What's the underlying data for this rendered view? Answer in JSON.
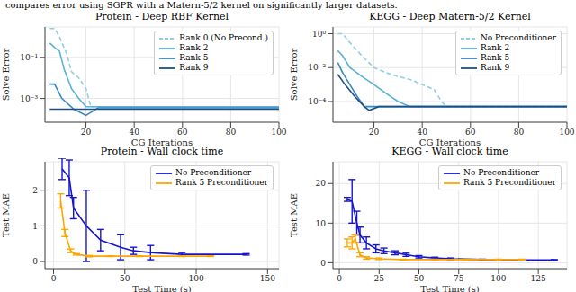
{
  "caption": "compares error using SGPR with a Matern-5/2 kernel on significantly larger datasets.",
  "chart_data": [
    {
      "type": "line",
      "title": "Protein - Deep RBF Kernel",
      "x_label": "CG Iterations",
      "y_label": "Solve Error",
      "log": "y",
      "grid": true,
      "legend": "upper right",
      "xlim": [
        3,
        100
      ],
      "xticks": [
        20,
        40,
        60,
        80,
        100
      ],
      "ylim": [
        7e-05,
        3
      ],
      "yticks": [
        {
          "value": 0.1,
          "label": "10⁻¹"
        },
        {
          "value": 0.001,
          "label": "10⁻³"
        }
      ],
      "series": [
        {
          "name": "Rank 0 (No Precond.)",
          "color": "#8ecfe0",
          "line_style": "dashed",
          "x": [
            5,
            7,
            9,
            12,
            14,
            17,
            20,
            22,
            100
          ],
          "values": [
            2.5,
            2.5,
            1,
            0.15,
            0.02,
            0.01,
            0.003,
            0.0004,
            0.0004
          ]
        },
        {
          "name": "Rank 2",
          "color": "#5ab0d8",
          "line_style": "solid",
          "x": [
            5,
            7,
            9,
            11,
            14,
            17,
            20,
            100
          ],
          "values": [
            0.5,
            0.3,
            0.2,
            0.025,
            0.003,
            0.001,
            0.0004,
            0.0004
          ]
        },
        {
          "name": "Rank 5",
          "color": "#3a87c0",
          "line_style": "solid",
          "x": [
            5,
            7,
            10,
            15,
            20,
            25,
            100
          ],
          "values": [
            0.005,
            0.005,
            0.001,
            0.0003,
            0.00015,
            0.00035,
            0.00035
          ]
        },
        {
          "name": "Rank 9",
          "color": "#1d4f86",
          "line_style": "solid",
          "x": [
            5,
            100
          ],
          "values": [
            0.0003,
            0.0003
          ]
        }
      ]
    },
    {
      "type": "line",
      "title": "KEGG - Deep Matern-5/2 Kernel",
      "x_label": "CG Iterations",
      "y_label": "Solve Error",
      "log": "y",
      "grid": true,
      "legend": "upper right",
      "xlim": [
        3,
        100
      ],
      "xticks": [
        20,
        40,
        60,
        80,
        100
      ],
      "ylim": [
        6e-06,
        2.5
      ],
      "yticks": [
        {
          "value": 1,
          "label": "10⁰"
        },
        {
          "value": 0.01,
          "label": "10⁻²"
        },
        {
          "value": 0.0001,
          "label": "10⁻⁴"
        }
      ],
      "series": [
        {
          "name": "No Preconditioner",
          "color": "#8ecfe0",
          "line_style": "dashed",
          "x": [
            5,
            7,
            10,
            15,
            20,
            25,
            30,
            35,
            40,
            45,
            48,
            50,
            100
          ],
          "values": [
            1,
            1,
            0.3,
            0.05,
            0.01,
            0.005,
            0.003,
            0.002,
            0.001,
            0.0005,
            0.0001,
            5e-05,
            5e-05
          ]
        },
        {
          "name": "Rank 2",
          "color": "#5ab0d8",
          "line_style": "solid",
          "x": [
            5,
            7,
            10,
            15,
            20,
            25,
            30,
            35,
            100
          ],
          "values": [
            0.1,
            0.05,
            0.01,
            0.003,
            0.001,
            0.0003,
            0.0001,
            5e-05,
            5e-05
          ]
        },
        {
          "name": "Rank 5",
          "color": "#3a87c0",
          "line_style": "solid",
          "x": [
            5,
            7,
            10,
            13,
            16,
            100
          ],
          "values": [
            0.02,
            0.005,
            0.001,
            0.0002,
            5e-05,
            5e-05
          ]
        },
        {
          "name": "Rank 9",
          "color": "#1d4f86",
          "line_style": "solid",
          "x": [
            5,
            8,
            12,
            16,
            18,
            22,
            100
          ],
          "values": [
            0.004,
            0.001,
            0.0002,
            5e-05,
            3e-05,
            5e-05,
            5e-05
          ]
        }
      ]
    },
    {
      "type": "line",
      "title": "Protein - Wall clock time",
      "x_label": "Test Time (s)",
      "y_label": "Test MAE",
      "grid": true,
      "legend": "upper right",
      "xlim": [
        -6,
        158
      ],
      "xticks": [
        0,
        50,
        100,
        150
      ],
      "ylim": [
        -0.2,
        2.8
      ],
      "yticks": [
        0,
        1,
        2
      ],
      "series": [
        {
          "name": "No Preconditioner",
          "color": "#1515d0",
          "line_style": "solid",
          "x": [
            6,
            11,
            14,
            23,
            33,
            47,
            56,
            68,
            90,
            135
          ],
          "values": [
            2.6,
            2.35,
            1.5,
            1.0,
            0.6,
            0.4,
            0.3,
            0.25,
            0.2,
            0.2
          ],
          "errors": [
            0.3,
            0.5,
            0.3,
            1.0,
            0.3,
            0.35,
            0.1,
            0.2,
            0.05,
            0.02
          ]
        },
        {
          "name": "Rank 5 Preconditioner",
          "color": "#ffa500",
          "line_style": "solid",
          "x": [
            5,
            8,
            12,
            16,
            25,
            40,
            60,
            90,
            110
          ],
          "values": [
            1.7,
            0.8,
            0.3,
            0.2,
            0.15,
            0.15,
            0.15,
            0.15,
            0.15
          ],
          "errors": [
            0.2,
            0.1,
            0.05,
            0.02,
            0.02,
            0.01,
            0.01,
            0.01,
            0.01
          ]
        }
      ]
    },
    {
      "type": "line",
      "title": "KEGG - Wall clock time",
      "x_label": "Test Time (s)",
      "y_label": "Test MAE",
      "grid": true,
      "legend": "upper right",
      "xlim": [
        -4,
        143
      ],
      "xticks": [
        0,
        25,
        50,
        75,
        100,
        125
      ],
      "ylim": [
        -1.5,
        25.5
      ],
      "yticks": [
        0,
        10,
        20
      ],
      "series": [
        {
          "name": "No Preconditioner",
          "color": "#1515d0",
          "line_style": "solid",
          "x": [
            5,
            8,
            11,
            13,
            17,
            23,
            28,
            35,
            42,
            50,
            60,
            70,
            90,
            115,
            135
          ],
          "values": [
            16,
            15.5,
            10,
            7,
            5,
            3.5,
            3,
            2.5,
            2,
            1.5,
            1.2,
            1,
            0.8,
            0.7,
            0.7
          ],
          "errors": [
            0.5,
            5.5,
            3,
            2,
            1.5,
            1,
            0.7,
            0.5,
            0.4,
            0.3,
            0.2,
            0.2,
            0.1,
            0.1,
            0.1
          ]
        },
        {
          "name": "Rank 5 Preconditioner",
          "color": "#ffa500",
          "line_style": "solid",
          "x": [
            5,
            8,
            10,
            13,
            17,
            25,
            40,
            60,
            80,
            100,
            115
          ],
          "values": [
            5,
            5,
            6,
            2,
            1.2,
            1,
            0.8,
            0.8,
            0.8,
            0.8,
            0.8
          ],
          "errors": [
            1,
            1.5,
            1,
            0.5,
            0.3,
            0.2,
            0.1,
            0.1,
            0.1,
            0.1,
            0.1
          ]
        }
      ]
    }
  ]
}
